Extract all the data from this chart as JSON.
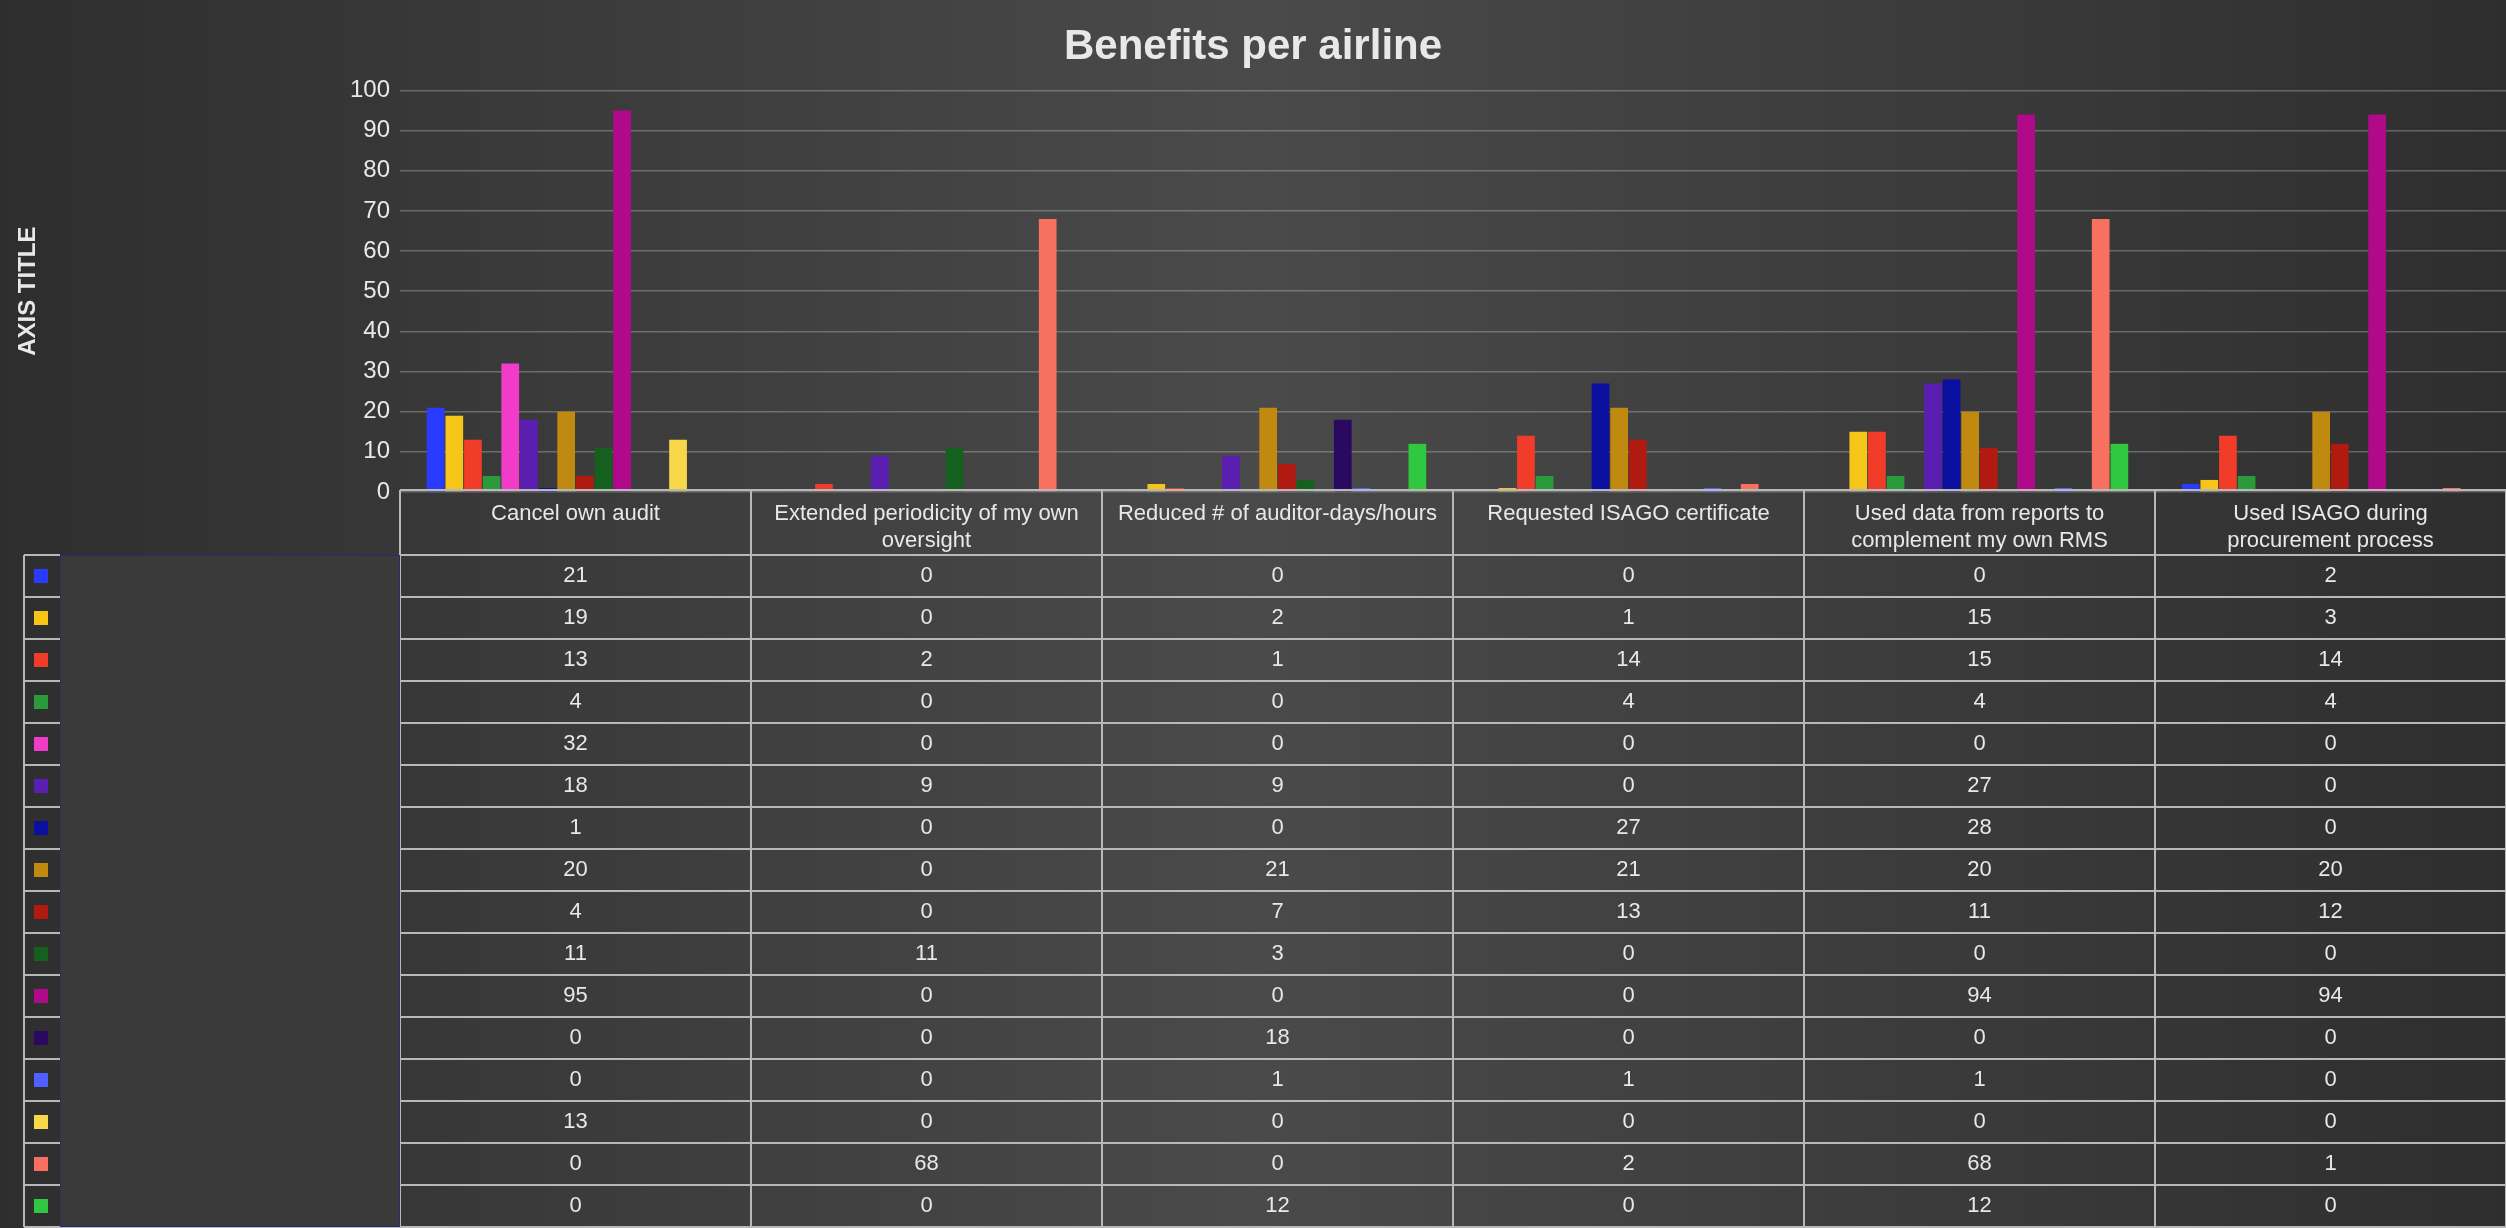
{
  "chart_data": {
    "type": "bar",
    "title": "Benefits per airline",
    "annotations": [
      "AXIS TITLE"
    ],
    "categories": [
      "Cancel own audit",
      "Extended periodicity of my own oversight",
      "Reduced # of auditor-days/hours",
      "Requested ISAGO certificate",
      "Used data from reports to complement my own RMS",
      "Used ISAGO during procurement process"
    ],
    "series": [
      {
        "color": "#2a3bff",
        "values": [
          21,
          0,
          0,
          0,
          0,
          2
        ]
      },
      {
        "color": "#f5c518",
        "values": [
          19,
          0,
          2,
          1,
          15,
          3
        ]
      },
      {
        "color": "#f23c2a",
        "values": [
          13,
          2,
          1,
          14,
          15,
          14
        ]
      },
      {
        "color": "#2a9a3a",
        "values": [
          4,
          0,
          0,
          4,
          4,
          4
        ]
      },
      {
        "color": "#f03cc8",
        "values": [
          32,
          0,
          0,
          0,
          0,
          0
        ]
      },
      {
        "color": "#5a1fb0",
        "values": [
          18,
          9,
          9,
          0,
          27,
          0
        ]
      },
      {
        "color": "#0a0fa0",
        "values": [
          1,
          0,
          0,
          27,
          28,
          0
        ]
      },
      {
        "color": "#c08a10",
        "values": [
          20,
          0,
          21,
          21,
          20,
          20
        ]
      },
      {
        "color": "#b01a10",
        "values": [
          4,
          0,
          7,
          13,
          11,
          12
        ]
      },
      {
        "color": "#15601f",
        "values": [
          11,
          11,
          3,
          0,
          0,
          0
        ]
      },
      {
        "color": "#b00a8a",
        "values": [
          95,
          0,
          0,
          0,
          94,
          94
        ]
      },
      {
        "color": "#2a0a60",
        "values": [
          0,
          0,
          18,
          0,
          0,
          0
        ]
      },
      {
        "color": "#5060ff",
        "values": [
          0,
          0,
          1,
          1,
          1,
          0
        ]
      },
      {
        "color": "#f8d848",
        "values": [
          13,
          0,
          0,
          0,
          0,
          0
        ]
      },
      {
        "color": "#f87060",
        "values": [
          0,
          68,
          0,
          2,
          68,
          1
        ]
      },
      {
        "color": "#30c840",
        "values": [
          0,
          0,
          12,
          0,
          12,
          0
        ]
      }
    ],
    "ylim": [
      0,
      100
    ],
    "yticks": [
      0,
      10,
      20,
      30,
      40,
      50,
      60,
      70,
      80,
      90,
      100
    ],
    "grid": "y",
    "legend": false,
    "data_labels": true
  }
}
